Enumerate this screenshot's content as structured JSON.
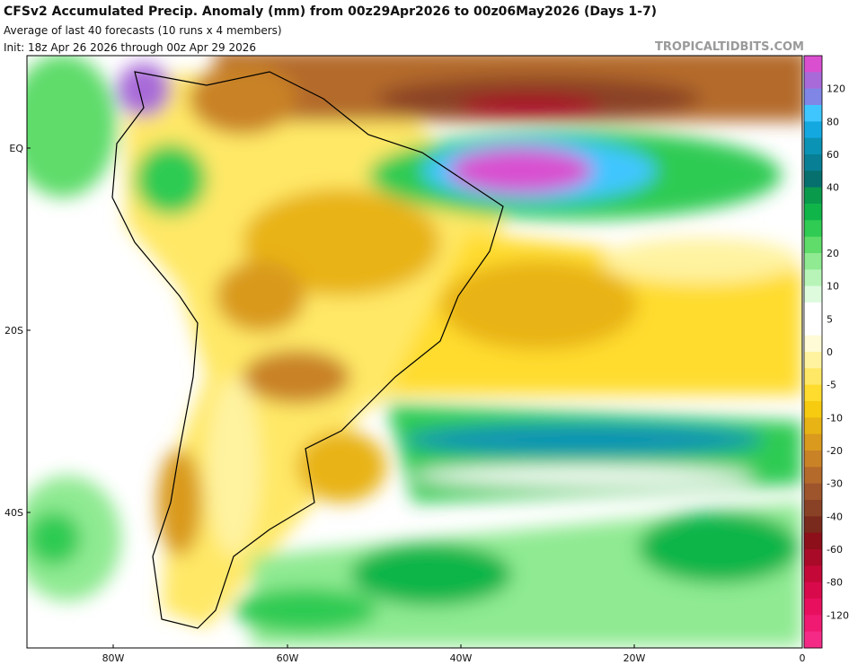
{
  "header": {
    "title": "CFSv2 Accumulated Precip. Anomaly (mm) from 00z29Apr2026 to 00z06May2026 (Days 1-7)",
    "subtitle": "Average of last 40 forecasts (10 runs x 4 members)",
    "init": "Init: 18z Apr 26 2026 through 00z Apr 29 2026",
    "watermark": "TROPICALTIDBITS.COM"
  },
  "map": {
    "lat_labels": [
      "EQ",
      "20S",
      "40S"
    ],
    "lon_labels": [
      "80W",
      "60W",
      "40W",
      "20W",
      "0"
    ]
  },
  "colorbar": {
    "labels": [
      120,
      80,
      60,
      40,
      20,
      10,
      5,
      0,
      -5,
      -10,
      -20,
      -30,
      -40,
      -60,
      -80,
      -120
    ],
    "colors": [
      "#d94fd0",
      "#a86ad8",
      "#7f86e6",
      "#3fc6ff",
      "#14a8e0",
      "#0a93b4",
      "#087f94",
      "#06706e",
      "#0a9a4c",
      "#10b54a",
      "#2fcb52",
      "#5fdc6a",
      "#8fea92",
      "#b8f4b8",
      "#defbde",
      "#ffffff",
      "#ffffff",
      "#fffbd6",
      "#fff3a0",
      "#ffe866",
      "#ffdc2e",
      "#f6cb10",
      "#e8b314",
      "#d99a1e",
      "#c98226",
      "#b46a2a",
      "#9e552c",
      "#8a4226",
      "#7a2a1c",
      "#8c0f1a",
      "#a80a28",
      "#c40838",
      "#d80a4c",
      "#e8105e",
      "#f01a72",
      "#f52a86"
    ]
  }
}
